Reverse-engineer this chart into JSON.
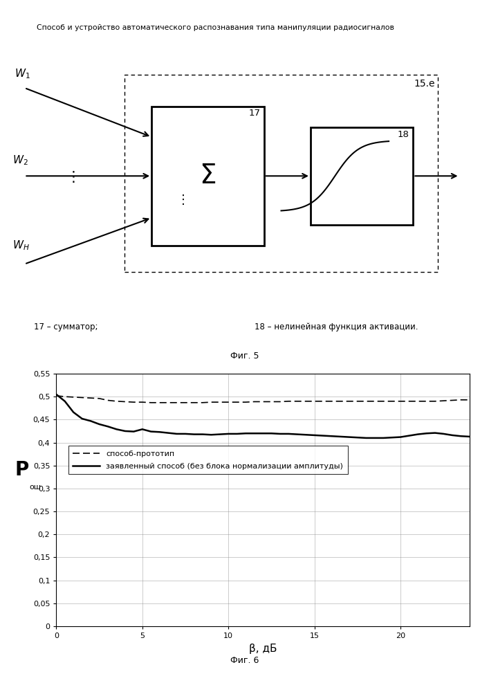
{
  "title": "Способ и устройство автоматического распознавания типа манипуляции радиосигналов",
  "fig5_label": "Фиг. 5",
  "fig6_label": "Фиг. 6",
  "label_17": "17 – сумматор;",
  "label_18": "18 – нелинейная функция активации.",
  "box_label": "15.e",
  "sum_label": "17",
  "act_label": "18",
  "legend_dashed": "способ-прототип",
  "legend_solid": "заявленный способ (без блока нормализации амплитуды)",
  "xlabel": "β, дБ",
  "xlim": [
    0,
    24
  ],
  "ylim": [
    0,
    0.55
  ],
  "yticks": [
    0,
    0.05,
    0.1,
    0.15,
    0.2,
    0.25,
    0.3,
    0.35,
    0.4,
    0.45,
    0.5,
    0.55
  ],
  "xticks": [
    0,
    5,
    10,
    15,
    20
  ],
  "dashed_x": [
    0,
    0.5,
    1,
    1.5,
    2,
    2.5,
    3,
    3.5,
    4,
    4.5,
    5,
    5.5,
    6,
    6.5,
    7,
    7.5,
    8,
    8.5,
    9,
    9.5,
    10,
    10.5,
    11,
    11.5,
    12,
    12.5,
    13,
    13.5,
    14,
    14.5,
    15,
    15.5,
    16,
    16.5,
    17,
    17.5,
    18,
    18.5,
    19,
    19.5,
    20,
    20.5,
    21,
    21.5,
    22,
    22.5,
    23,
    23.5,
    24
  ],
  "dashed_y": [
    0.502,
    0.5,
    0.499,
    0.498,
    0.497,
    0.496,
    0.492,
    0.49,
    0.489,
    0.488,
    0.488,
    0.487,
    0.487,
    0.487,
    0.487,
    0.487,
    0.487,
    0.487,
    0.488,
    0.488,
    0.488,
    0.488,
    0.488,
    0.489,
    0.489,
    0.489,
    0.489,
    0.49,
    0.49,
    0.49,
    0.49,
    0.49,
    0.49,
    0.49,
    0.49,
    0.49,
    0.49,
    0.49,
    0.49,
    0.49,
    0.49,
    0.49,
    0.49,
    0.49,
    0.49,
    0.491,
    0.492,
    0.493,
    0.493
  ],
  "solid_x": [
    0,
    0.5,
    1,
    1.5,
    2,
    2.5,
    3,
    3.5,
    4,
    4.5,
    5,
    5.5,
    6,
    6.5,
    7,
    7.5,
    8,
    8.5,
    9,
    9.5,
    10,
    10.5,
    11,
    11.5,
    12,
    12.5,
    13,
    13.5,
    14,
    14.5,
    15,
    15.5,
    16,
    16.5,
    17,
    17.5,
    18,
    18.5,
    19,
    19.5,
    20,
    20.5,
    21,
    21.5,
    22,
    22.5,
    23,
    23.5,
    24
  ],
  "solid_y": [
    0.505,
    0.49,
    0.466,
    0.452,
    0.447,
    0.44,
    0.435,
    0.429,
    0.425,
    0.424,
    0.429,
    0.424,
    0.423,
    0.421,
    0.419,
    0.419,
    0.418,
    0.418,
    0.417,
    0.418,
    0.419,
    0.419,
    0.42,
    0.42,
    0.42,
    0.42,
    0.419,
    0.419,
    0.418,
    0.417,
    0.416,
    0.415,
    0.414,
    0.413,
    0.412,
    0.411,
    0.41,
    0.41,
    0.41,
    0.411,
    0.412,
    0.415,
    0.418,
    0.42,
    0.421,
    0.419,
    0.416,
    0.414,
    0.413
  ]
}
